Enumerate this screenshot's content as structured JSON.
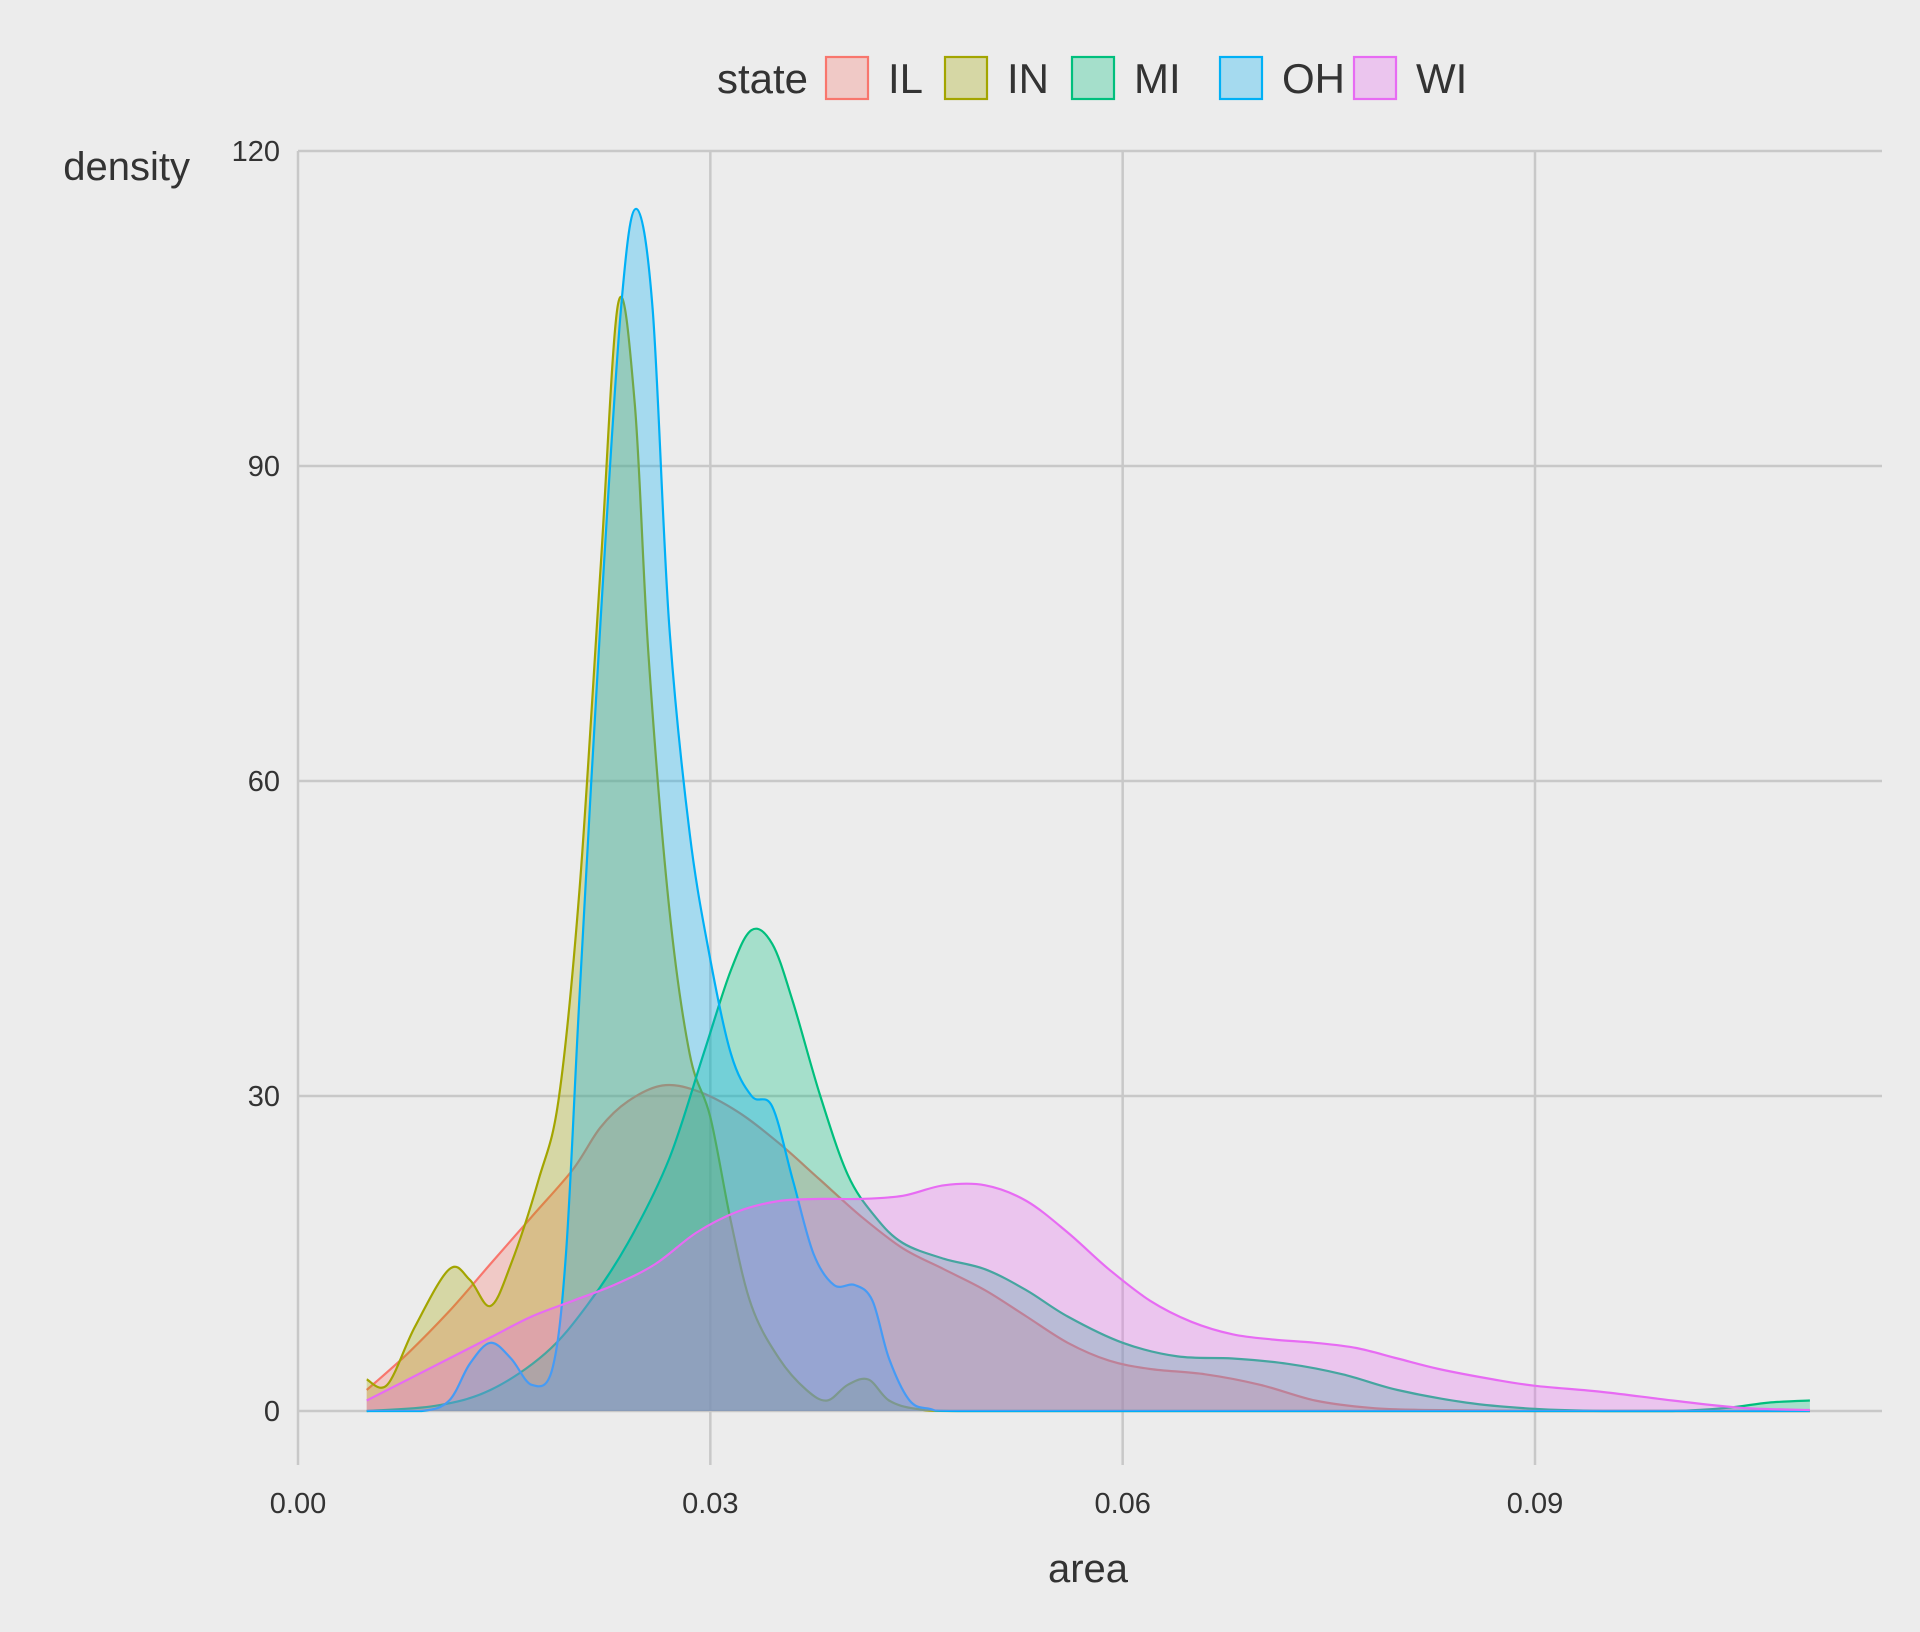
{
  "chart_data": {
    "type": "area",
    "title": "",
    "xlabel": "area",
    "ylabel": "density",
    "xlim": [
      0,
      0.115
    ],
    "ylim": [
      -4.5,
      120
    ],
    "xticks": [
      {
        "value": 0.0,
        "label": "0.00"
      },
      {
        "value": 0.03,
        "label": "0.03"
      },
      {
        "value": 0.06,
        "label": "0.06"
      },
      {
        "value": 0.09,
        "label": "0.09"
      }
    ],
    "yticks": [
      {
        "value": 0,
        "label": "0"
      },
      {
        "value": 30,
        "label": "30"
      },
      {
        "value": 60,
        "label": "60"
      },
      {
        "value": 90,
        "label": "90"
      },
      {
        "value": 120,
        "label": "120"
      }
    ],
    "grid": true,
    "legend": {
      "title": "state",
      "position": "top"
    },
    "series": [
      {
        "name": "IL",
        "color": "#F8766D",
        "points": [
          [
            0.005,
            2.0
          ],
          [
            0.008,
            5.5
          ],
          [
            0.011,
            9.5
          ],
          [
            0.014,
            14.0
          ],
          [
            0.017,
            18.5
          ],
          [
            0.02,
            23.0
          ],
          [
            0.022,
            27.0
          ],
          [
            0.024,
            29.5
          ],
          [
            0.0265,
            31.0
          ],
          [
            0.029,
            30.5
          ],
          [
            0.032,
            28.5
          ],
          [
            0.035,
            25.5
          ],
          [
            0.038,
            22.0
          ],
          [
            0.041,
            18.5
          ],
          [
            0.044,
            15.5
          ],
          [
            0.047,
            13.5
          ],
          [
            0.05,
            11.5
          ],
          [
            0.053,
            9.0
          ],
          [
            0.056,
            6.5
          ],
          [
            0.059,
            4.8
          ],
          [
            0.062,
            4.0
          ],
          [
            0.066,
            3.5
          ],
          [
            0.07,
            2.5
          ],
          [
            0.074,
            1.0
          ],
          [
            0.078,
            0.3
          ],
          [
            0.082,
            0.1
          ],
          [
            0.09,
            0
          ],
          [
            0.1,
            0
          ],
          [
            0.11,
            0
          ]
        ]
      },
      {
        "name": "IN",
        "color": "#A3A500",
        "points": [
          [
            0.005,
            3.0
          ],
          [
            0.0065,
            2.5
          ],
          [
            0.0085,
            8.0
          ],
          [
            0.011,
            13.5
          ],
          [
            0.0125,
            12.5
          ],
          [
            0.014,
            10.0
          ],
          [
            0.0155,
            14.0
          ],
          [
            0.0175,
            22.0
          ],
          [
            0.019,
            30.0
          ],
          [
            0.0205,
            50.0
          ],
          [
            0.022,
            80.0
          ],
          [
            0.0233,
            105.5
          ],
          [
            0.0245,
            96.0
          ],
          [
            0.0255,
            72.0
          ],
          [
            0.027,
            48.0
          ],
          [
            0.0285,
            34.0
          ],
          [
            0.03,
            28.0
          ],
          [
            0.0315,
            18.0
          ],
          [
            0.033,
            10.0
          ],
          [
            0.035,
            5.0
          ],
          [
            0.037,
            2.0
          ],
          [
            0.0385,
            1.0
          ],
          [
            0.04,
            2.5
          ],
          [
            0.0415,
            3.0
          ],
          [
            0.043,
            1.0
          ],
          [
            0.045,
            0.2
          ],
          [
            0.048,
            0
          ],
          [
            0.06,
            0
          ],
          [
            0.08,
            0
          ],
          [
            0.11,
            0
          ]
        ]
      },
      {
        "name": "MI",
        "color": "#00BF7D",
        "points": [
          [
            0.005,
            0
          ],
          [
            0.01,
            0.5
          ],
          [
            0.014,
            2.0
          ],
          [
            0.018,
            5.5
          ],
          [
            0.021,
            10.0
          ],
          [
            0.024,
            16.0
          ],
          [
            0.027,
            24.0
          ],
          [
            0.0295,
            34.0
          ],
          [
            0.0315,
            42.0
          ],
          [
            0.033,
            45.8
          ],
          [
            0.0345,
            44.5
          ],
          [
            0.036,
            39.0
          ],
          [
            0.038,
            30.0
          ],
          [
            0.04,
            22.5
          ],
          [
            0.042,
            18.5
          ],
          [
            0.044,
            16.0
          ],
          [
            0.047,
            14.5
          ],
          [
            0.05,
            13.5
          ],
          [
            0.053,
            11.5
          ],
          [
            0.056,
            9.0
          ],
          [
            0.06,
            6.5
          ],
          [
            0.064,
            5.2
          ],
          [
            0.068,
            5.0
          ],
          [
            0.072,
            4.5
          ],
          [
            0.076,
            3.5
          ],
          [
            0.08,
            2.0
          ],
          [
            0.085,
            0.8
          ],
          [
            0.09,
            0.2
          ],
          [
            0.095,
            0
          ],
          [
            0.1,
            0
          ],
          [
            0.104,
            0.3
          ],
          [
            0.107,
            0.8
          ],
          [
            0.11,
            1.0
          ]
        ]
      },
      {
        "name": "OH",
        "color": "#00B0F6",
        "points": [
          [
            0.005,
            0
          ],
          [
            0.009,
            0
          ],
          [
            0.011,
            1.0
          ],
          [
            0.0125,
            4.5
          ],
          [
            0.014,
            6.5
          ],
          [
            0.0155,
            5.0
          ],
          [
            0.017,
            2.5
          ],
          [
            0.0185,
            4.0
          ],
          [
            0.0195,
            15.0
          ],
          [
            0.0205,
            40.0
          ],
          [
            0.022,
            75.0
          ],
          [
            0.0235,
            105.0
          ],
          [
            0.0246,
            114.5
          ],
          [
            0.0258,
            105.0
          ],
          [
            0.027,
            75.0
          ],
          [
            0.0285,
            55.0
          ],
          [
            0.03,
            43.0
          ],
          [
            0.0315,
            34.0
          ],
          [
            0.033,
            30.0
          ],
          [
            0.0345,
            29.0
          ],
          [
            0.036,
            22.0
          ],
          [
            0.0375,
            15.0
          ],
          [
            0.039,
            12.0
          ],
          [
            0.0405,
            12.0
          ],
          [
            0.0418,
            10.5
          ],
          [
            0.043,
            5.0
          ],
          [
            0.0445,
            1.0
          ],
          [
            0.046,
            0.2
          ],
          [
            0.048,
            0
          ],
          [
            0.06,
            0
          ],
          [
            0.08,
            0
          ],
          [
            0.11,
            0
          ]
        ]
      },
      {
        "name": "WI",
        "color": "#E76BF3",
        "points": [
          [
            0.005,
            1.0
          ],
          [
            0.008,
            3.0
          ],
          [
            0.011,
            5.0
          ],
          [
            0.014,
            7.0
          ],
          [
            0.017,
            9.0
          ],
          [
            0.02,
            10.5
          ],
          [
            0.023,
            12.0
          ],
          [
            0.026,
            14.0
          ],
          [
            0.029,
            17.0
          ],
          [
            0.032,
            19.0
          ],
          [
            0.035,
            20.0
          ],
          [
            0.038,
            20.2
          ],
          [
            0.041,
            20.2
          ],
          [
            0.044,
            20.5
          ],
          [
            0.047,
            21.5
          ],
          [
            0.05,
            21.5
          ],
          [
            0.053,
            20.0
          ],
          [
            0.056,
            17.0
          ],
          [
            0.059,
            13.5
          ],
          [
            0.062,
            10.5
          ],
          [
            0.065,
            8.5
          ],
          [
            0.068,
            7.3
          ],
          [
            0.071,
            6.8
          ],
          [
            0.074,
            6.5
          ],
          [
            0.077,
            6.0
          ],
          [
            0.08,
            5.0
          ],
          [
            0.083,
            4.0
          ],
          [
            0.087,
            3.0
          ],
          [
            0.09,
            2.4
          ],
          [
            0.095,
            1.8
          ],
          [
            0.1,
            1.0
          ],
          [
            0.105,
            0.3
          ],
          [
            0.11,
            0.1
          ]
        ]
      }
    ]
  }
}
